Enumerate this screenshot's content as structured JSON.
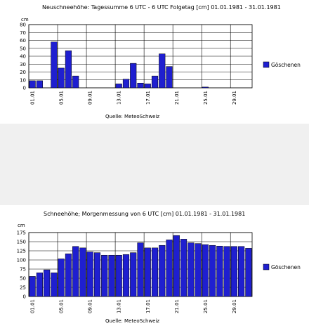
{
  "colors": {
    "bar": "#1f1fd0",
    "bar_edge": "#000000",
    "grid": "#000000",
    "legend_swatch": "#1f1fd0"
  },
  "chart_data": [
    {
      "type": "bar",
      "title": "Neuschneehöhe: Tagessumme 6 UTC - 6 UTC Folgetag [cm]  01.01.1981 - 31.01.1981",
      "ylabel": "cm",
      "ylim": [
        0,
        80
      ],
      "yticks": [
        "0",
        "10",
        "20",
        "30",
        "40",
        "50",
        "60",
        "70",
        "80"
      ],
      "grid": true,
      "legend_position": "right",
      "x_tick_labels": [
        "01.01",
        "05.01",
        "09.01",
        "13.01",
        "17.01",
        "21.01",
        "25.01",
        "29.01"
      ],
      "source": "Quelle: MeteoSchweiz",
      "series": [
        {
          "name": "Göschenen",
          "values": [
            9,
            9,
            0,
            58,
            25,
            47,
            15,
            0,
            0,
            0,
            0,
            0,
            5,
            11,
            31,
            6,
            5,
            15,
            43,
            27,
            0,
            0,
            0,
            0,
            1,
            0,
            0,
            0,
            0,
            0,
            0
          ]
        }
      ]
    },
    {
      "type": "bar",
      "title": "Schneehöhe; Morgenmessung von 6 UTC [cm]  01.01.1981 - 31.01.1981",
      "ylabel": "cm",
      "ylim": [
        0,
        175
      ],
      "yticks": [
        "0",
        "25",
        "50",
        "75",
        "100",
        "125",
        "150",
        "175"
      ],
      "grid": true,
      "legend_position": "right",
      "x_tick_labels": [
        "01.01",
        "05.01",
        "09.01",
        "13.01",
        "17.01",
        "21.01",
        "25.01",
        "29.01"
      ],
      "source": "Quelle: MeteoSchweiz",
      "series": [
        {
          "name": "Göschenen",
          "values": [
            55,
            65,
            73,
            65,
            103,
            117,
            137,
            133,
            122,
            120,
            113,
            113,
            113,
            115,
            120,
            147,
            133,
            133,
            140,
            155,
            167,
            157,
            147,
            145,
            142,
            140,
            138,
            137,
            137,
            137,
            132
          ]
        }
      ]
    }
  ]
}
